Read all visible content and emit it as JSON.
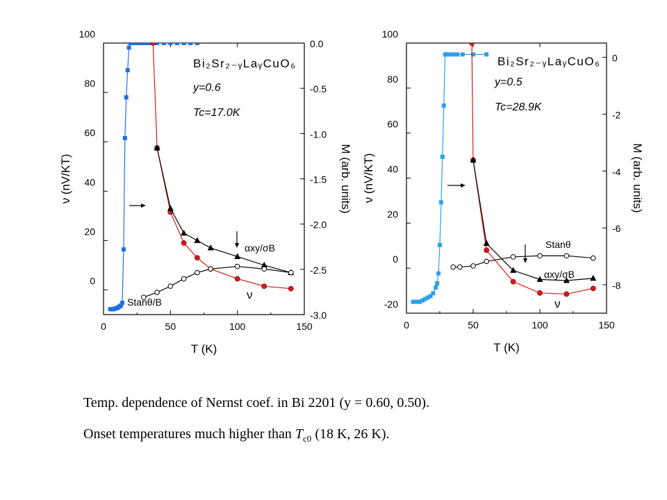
{
  "chart_data": [
    {
      "type": "line",
      "x_label": "T (K)",
      "y_label": "ν (nV/KT)",
      "y2_label": "M (arb. units)",
      "xlim": [
        0,
        150
      ],
      "ylim": [
        -10,
        100
      ],
      "y2lim": [
        -3.0,
        0.0
      ],
      "x_ticks": [
        "0",
        "50",
        "100",
        "150"
      ],
      "y_ticks": [
        "0",
        "20",
        "40",
        "60",
        "80",
        "100"
      ],
      "y2_ticks": [
        "0.0",
        "-0.5",
        "-1.0",
        "-1.5",
        "-2.0",
        "-2.5",
        "-3.0"
      ],
      "compound": "Bi₂Sr₂₋ᵧLaᵧCuO₆",
      "params": [
        "y=0.6",
        "Tc=17.0K"
      ],
      "labels": {
        "alpha": "αxy/σB",
        "nu": "ν",
        "stan": "Stanθ/B"
      },
      "series": [
        {
          "name": "M",
          "axis": "right",
          "color": "#1f6fe6",
          "marker": "square",
          "x": [
            5,
            6,
            7,
            8,
            9,
            10,
            11,
            12,
            13,
            14,
            15,
            16,
            17,
            18,
            19,
            20,
            22,
            24,
            26,
            28,
            30,
            32,
            35,
            40,
            45,
            50,
            55,
            60,
            65,
            70
          ],
          "y": [
            -2.94,
            -2.94,
            -2.94,
            -2.94,
            -2.93,
            -2.93,
            -2.92,
            -2.91,
            -2.9,
            -2.87,
            -2.28,
            -1.05,
            -0.6,
            -0.3,
            -0.05,
            0.0,
            0.0,
            0.0,
            0.0,
            0.0,
            0.0,
            0.0,
            0.0,
            0.0,
            0.0,
            0.0,
            0.0,
            0.0,
            0.0,
            0.0
          ]
        },
        {
          "name": "ν",
          "axis": "left",
          "color": "#d41a1a",
          "marker": "circle",
          "x": [
            37,
            40,
            50,
            60,
            70,
            80,
            100,
            120,
            140
          ],
          "y": [
            100,
            57.5,
            31.5,
            19,
            13,
            8.5,
            4.5,
            1.5,
            0.5
          ]
        },
        {
          "name": "αxy/σB",
          "axis": "left",
          "color": "#000000",
          "marker": "triangle",
          "x": [
            40,
            50,
            60,
            70,
            80,
            100,
            120,
            140
          ],
          "y": [
            57.5,
            33,
            23,
            20,
            17,
            13.5,
            10,
            7
          ]
        },
        {
          "name": "Stanθ/B",
          "axis": "left",
          "color": "#000000",
          "marker": "open-circle",
          "x": [
            30,
            40,
            50,
            60,
            70,
            80,
            100,
            120,
            140
          ],
          "y": [
            -3,
            -1,
            1.5,
            4.5,
            7,
            8.5,
            9.5,
            8.5,
            7
          ]
        }
      ]
    },
    {
      "type": "line",
      "x_label": "T (K)",
      "y_label": "ν (nV/KT)",
      "y2_label": "M (arb. units)",
      "xlim": [
        0,
        150
      ],
      "ylim": [
        -20,
        100
      ],
      "y2lim": [
        -9.0,
        0.5
      ],
      "x_ticks": [
        "0",
        "50",
        "100",
        "150"
      ],
      "y_ticks": [
        "-20",
        "0",
        "20",
        "40",
        "60",
        "80",
        "100"
      ],
      "y2_ticks": [
        "0",
        "-2",
        "-4",
        "-6",
        "-8"
      ],
      "compound": "Bi₂Sr₂₋ᵧLaᵧCuO₆",
      "params": [
        "y=0.5",
        "Tc=28.9K"
      ],
      "labels": {
        "alpha": "αxy/σB",
        "nu": "ν",
        "stan": "Stanθ"
      },
      "series": [
        {
          "name": "M",
          "axis": "right",
          "color": "#2aa0ee",
          "marker": "square",
          "x": [
            5,
            8,
            10,
            12,
            14,
            16,
            18,
            20,
            22,
            23,
            24,
            25,
            26,
            27,
            28,
            29,
            30,
            32,
            35,
            38,
            42,
            50,
            60
          ],
          "y": [
            -8.6,
            -8.6,
            -8.6,
            -8.55,
            -8.5,
            -8.45,
            -8.4,
            -8.3,
            -8.1,
            -7.95,
            -7.6,
            -6.6,
            -5.1,
            -3.5,
            -1.7,
            0.1,
            0.1,
            0.1,
            0.1,
            0.1,
            0.1,
            0.1,
            0.1
          ]
        },
        {
          "name": "ν",
          "axis": "left",
          "color": "#d41a1a",
          "marker": "circle",
          "x": [
            49,
            50,
            60,
            80,
            100,
            120,
            140
          ],
          "y": [
            100,
            48,
            8,
            -6,
            -11,
            -11.5,
            -9
          ]
        },
        {
          "name": "αxy/σB",
          "axis": "left",
          "color": "#000000",
          "marker": "triangle",
          "x": [
            50,
            60,
            80,
            100,
            120,
            140
          ],
          "y": [
            48,
            11,
            -1,
            -5,
            -5.5,
            -4.5
          ]
        },
        {
          "name": "Stanθ",
          "axis": "left",
          "color": "#000000",
          "marker": "open-circle",
          "x": [
            35,
            40,
            50,
            60,
            80,
            100,
            120,
            140
          ],
          "y": [
            0.5,
            0.5,
            1,
            3,
            5,
            5.5,
            5.5,
            4.5
          ]
        }
      ]
    }
  ],
  "caption": {
    "line1": "Temp. dependence of Nernst coef. in Bi 2201 (y = 0.60, 0.50).",
    "line2_prefix": "Onset temperatures much higher than ",
    "line2_sym": "T",
    "line2_sub": "c0",
    "line2_suffix": " (18 K, 26 K)."
  }
}
